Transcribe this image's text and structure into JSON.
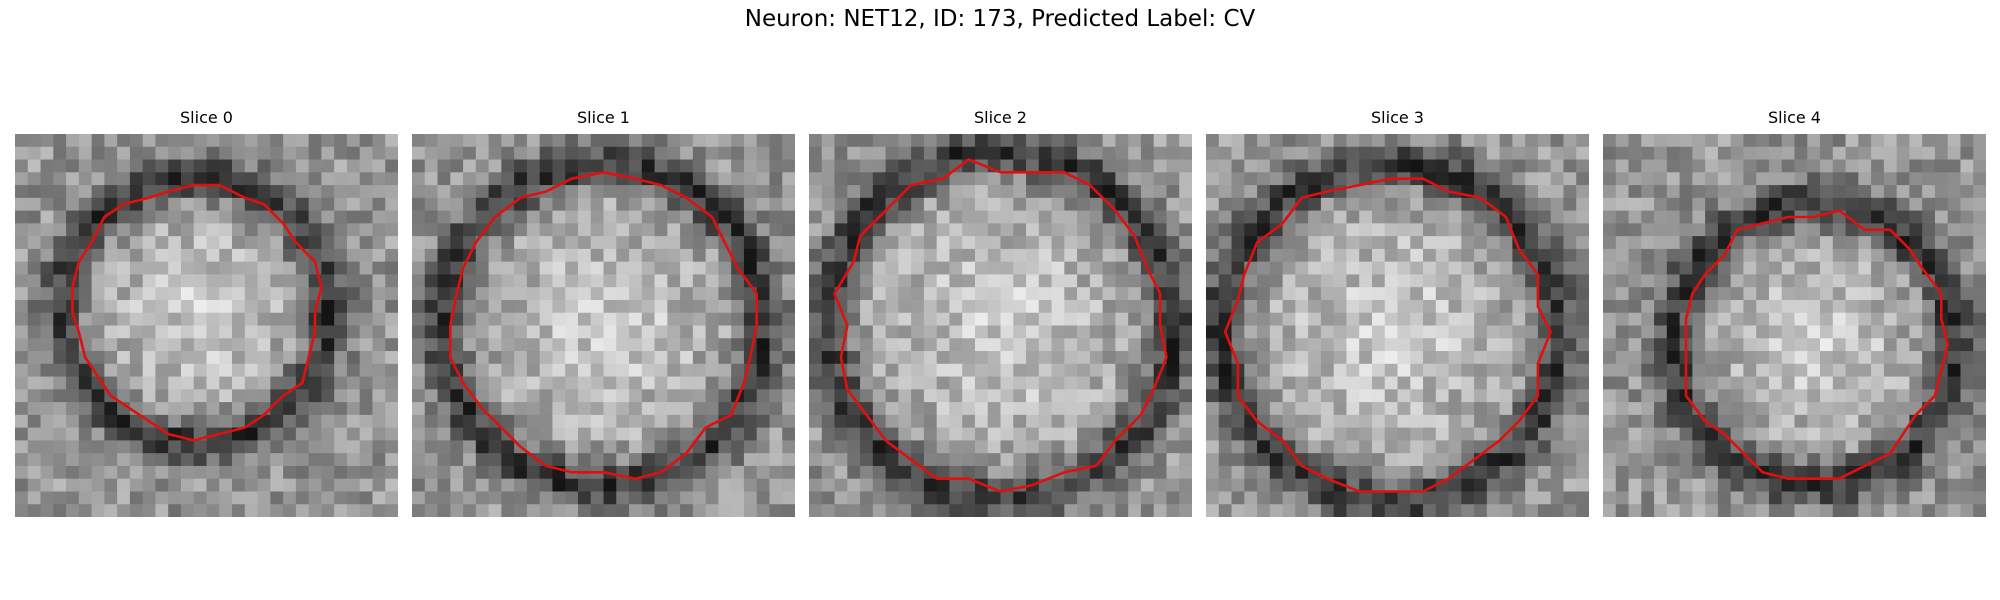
{
  "figure": {
    "title": "Neuron: NET12, ID: 173, Predicted Label: CV"
  },
  "panels": [
    {
      "title": "Slice 0",
      "seed": 11,
      "ring_radius": 0.33,
      "center": [
        0.47,
        0.46
      ],
      "contour_color": "#e01010"
    },
    {
      "title": "Slice 1",
      "seed": 23,
      "ring_radius": 0.4,
      "center": [
        0.5,
        0.5
      ],
      "contour_color": "#e01010"
    },
    {
      "title": "Slice 2",
      "seed": 37,
      "ring_radius": 0.43,
      "center": [
        0.5,
        0.5
      ],
      "contour_color": "#e01010"
    },
    {
      "title": "Slice 3",
      "seed": 41,
      "ring_radius": 0.42,
      "center": [
        0.48,
        0.52
      ],
      "contour_color": "#e01010"
    },
    {
      "title": "Slice 4",
      "seed": 59,
      "ring_radius": 0.35,
      "center": [
        0.55,
        0.55
      ],
      "contour_color": "#e01010"
    }
  ],
  "colors": {
    "contour": "#e01010",
    "background": "#ffffff"
  }
}
